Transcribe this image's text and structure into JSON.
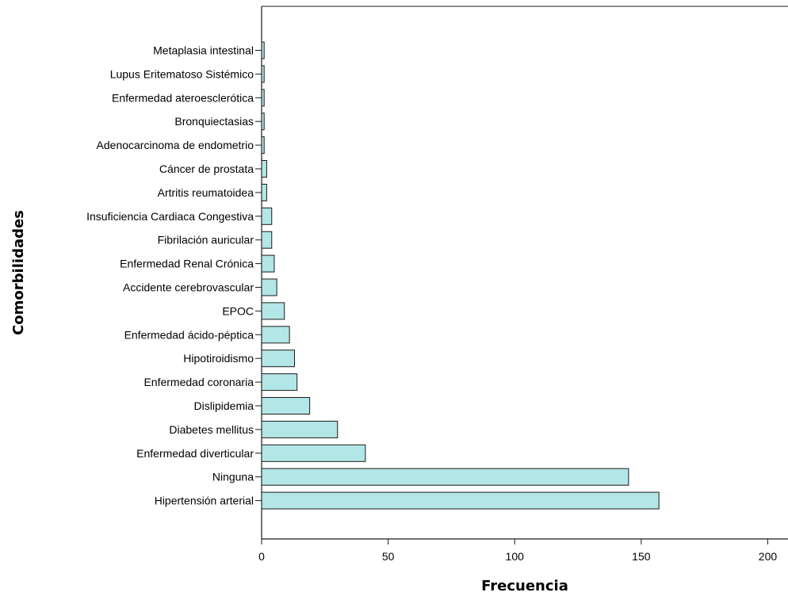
{
  "chart_data": {
    "type": "bar",
    "orientation": "horizontal",
    "categories": [
      "Metaplasia intestinal",
      "Lupus Eritematoso Sistémico",
      "Enfermedad ateroesclerótica",
      "Bronquiectasias",
      "Adenocarcinoma de endometrio",
      "Cáncer de prostata",
      "Artritis reumatoidea",
      "Insuficiencia Cardiaca Congestiva",
      "Fibrilación auricular",
      "Enfermedad Renal Crónica",
      "Accidente cerebrovascular",
      "EPOC",
      "Enfermedad ácido-péptica",
      "Hipotiroidismo",
      "Enfermedad coronaria",
      "Dislipidemia",
      "Diabetes mellitus",
      "Enfermedad diverticular",
      "Ninguna",
      "Hipertensión arterial"
    ],
    "values": [
      1,
      1,
      1,
      1,
      1,
      2,
      2,
      4,
      4,
      5,
      6,
      9,
      11,
      13,
      14,
      19,
      30,
      41,
      145,
      157
    ],
    "xlabel": "Frecuencia",
    "ylabel": "Comorbilidades",
    "xlim": [
      0,
      208
    ],
    "xticks": [
      0,
      50,
      100,
      150,
      200
    ],
    "grid": false,
    "bar_color": "#b3e6e6",
    "bar_edge_color": "#1a1a1a"
  }
}
